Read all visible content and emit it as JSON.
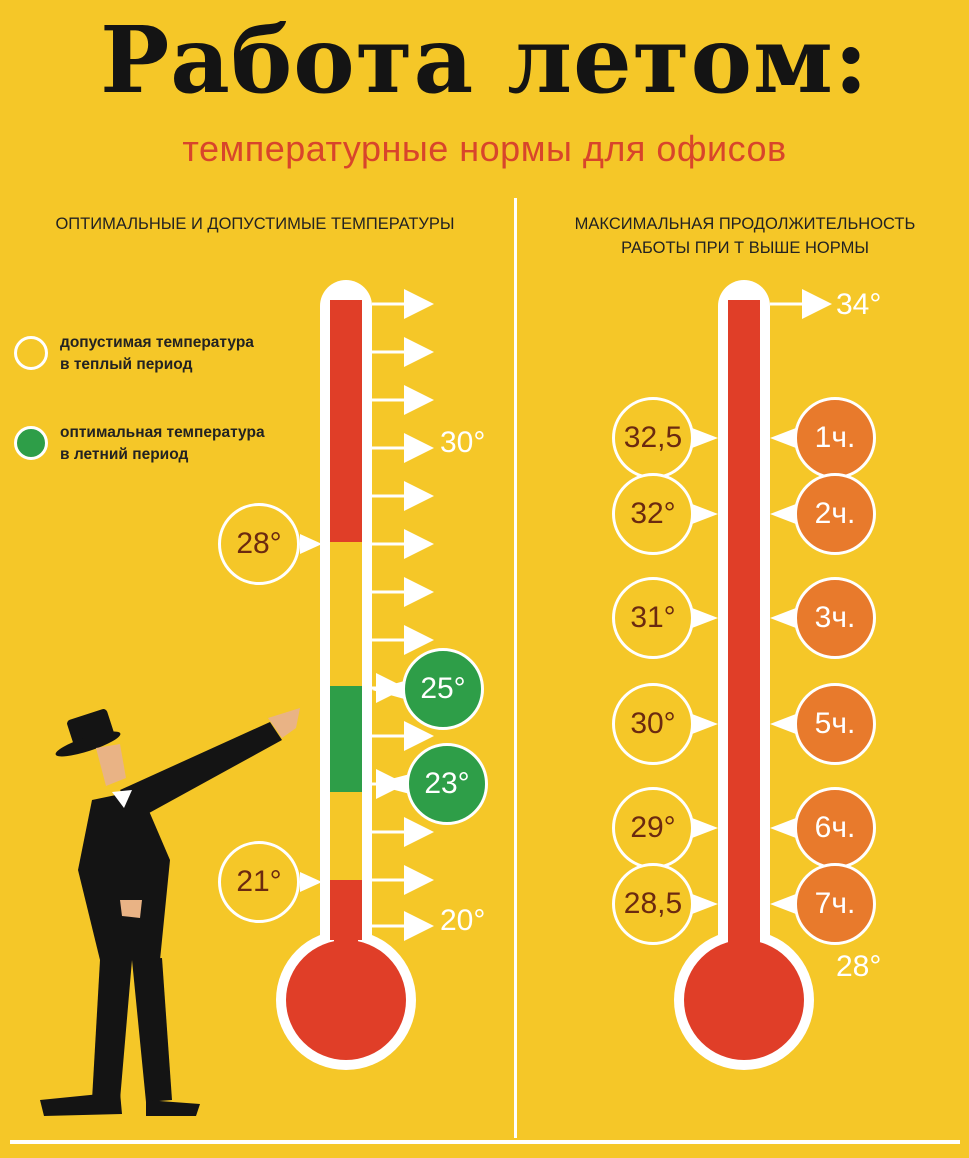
{
  "header": {
    "title": "Работа летом:",
    "subtitle": "температурные нормы для офисов"
  },
  "left_column": {
    "heading": "ОПТИМАЛЬНЫЕ И ДОПУСТИМЫЕ ТЕМПЕРАТУРЫ",
    "legend": [
      {
        "line1": "допустимая температура",
        "line2": "в теплый период",
        "color": "#f5c728"
      },
      {
        "line1": "оптимальная температура",
        "line2": "в летний период",
        "color": "#2e9e48"
      }
    ],
    "scale_labels": {
      "top": "30°",
      "bottom": "20°"
    },
    "badges": [
      {
        "label": "28°",
        "kind": "permissible"
      },
      {
        "label": "25°",
        "kind": "optimal"
      },
      {
        "label": "23°",
        "kind": "optimal"
      },
      {
        "label": "21°",
        "kind": "permissible"
      }
    ]
  },
  "right_column": {
    "heading_line1": "МАКСИМАЛЬНАЯ ПРОДОЛЖИТЕЛЬНОСТЬ",
    "heading_line2": "РАБОТЫ ПРИ Т ВЫШЕ НОРМЫ",
    "top_label": "34°",
    "bottom_label": "28°",
    "rows": [
      {
        "temp": "32,5",
        "hours": "1ч."
      },
      {
        "temp": "32°",
        "hours": "2ч."
      },
      {
        "temp": "31°",
        "hours": "3ч."
      },
      {
        "temp": "30°",
        "hours": "5ч."
      },
      {
        "temp": "29°",
        "hours": "6ч."
      },
      {
        "temp": "28,5",
        "hours": "7ч."
      }
    ]
  },
  "colors": {
    "background": "#f5c728",
    "red": "#e03e28",
    "optimal_green": "#2e9e48",
    "hours_orange": "#e87a2c",
    "text_dark": "#6b2a10"
  }
}
